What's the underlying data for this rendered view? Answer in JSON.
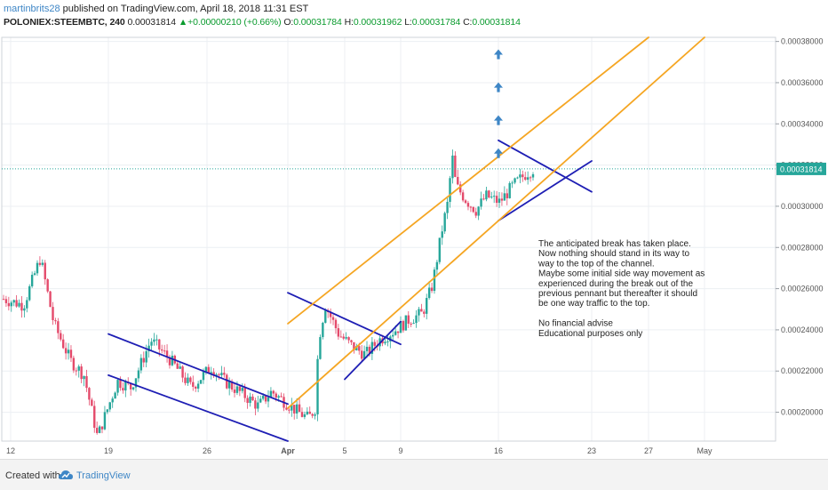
{
  "header": {
    "author": "martinbrits28",
    "published": "published on TradingView.com, April 18, 2018 11:31 EST",
    "symbol": "POLONIEX:STEEMBTC, 240",
    "last": "0.00031814",
    "change_arrow": "▲",
    "change": "+0.00000210 (+0.66%)",
    "o_label": "O:",
    "o_value": "0.00031784",
    "h_label": "H:",
    "h_value": "0.00031962",
    "l_label": "L:",
    "l_value": "0.00031784",
    "c_label": "C:",
    "c_value": "0.00031814"
  },
  "footer": {
    "created_with": "Created with",
    "brand": "TradingView",
    "logo_icon": "tradingview-cloud-icon"
  },
  "colors": {
    "up": "#26a69a",
    "down": "#e44a6b",
    "channel": "#f5a623",
    "trendline": "#1e1eb4",
    "arrow": "#3e86c6",
    "last_price_bg": "#26a69a"
  },
  "chart_data": {
    "type": "candlestick",
    "symbol": "POLONIEX:STEEMBTC",
    "timeframe": "240",
    "x_ticks": [
      "12",
      "19",
      "26",
      "Apr",
      "5",
      "9",
      "16",
      "23",
      "27",
      "May"
    ],
    "y_ticks": [
      "0.00020000",
      "0.00022000",
      "0.00024000",
      "0.00026000",
      "0.00028000",
      "0.00030000",
      "0.00032000",
      "0.00034000",
      "0.00036000",
      "0.00038000"
    ],
    "y_values": [
      0.0002,
      0.00022,
      0.00024,
      0.00026,
      0.00028,
      0.0003,
      0.00032,
      0.00034,
      0.00036,
      0.00038
    ],
    "ylim": [
      0.000186,
      0.000382
    ],
    "last_price_label": "0.00031814",
    "last_price": 0.00031814,
    "grid": true,
    "annotation": {
      "lines": [
        "The anticipated break has taken place.",
        "Now nothing should stand in its way to",
        "way to the top of the channel.",
        "Maybe some initial side way movement as",
        "experienced during the break out of the",
        "previous pennant but thereafter it should",
        "be one way traffic to the top.",
        "",
        "No financial advise",
        "Educational purposes only"
      ]
    },
    "path_points": [
      [
        0.0,
        0.000255
      ],
      [
        0.03,
        0.000252
      ],
      [
        0.055,
        0.000275
      ],
      [
        0.075,
        0.000243
      ],
      [
        0.1,
        0.000225
      ],
      [
        0.12,
        0.000218
      ],
      [
        0.14,
        0.000188
      ],
      [
        0.17,
        0.000215
      ],
      [
        0.19,
        0.000212
      ],
      [
        0.22,
        0.000235
      ],
      [
        0.25,
        0.000225
      ],
      [
        0.28,
        0.000212
      ],
      [
        0.31,
        0.000222
      ],
      [
        0.33,
        0.000215
      ],
      [
        0.36,
        0.000208
      ],
      [
        0.38,
        0.000203
      ],
      [
        0.4,
        0.00021
      ],
      [
        0.42,
        0.000205
      ],
      [
        0.44,
        0.0002
      ],
      [
        0.455,
        0.000197
      ],
      [
        0.465,
        0.000202
      ],
      [
        0.47,
        0.000235
      ],
      [
        0.48,
        0.000252
      ],
      [
        0.5,
        0.000238
      ],
      [
        0.52,
        0.000232
      ],
      [
        0.54,
        0.000228
      ],
      [
        0.56,
        0.000235
      ],
      [
        0.585,
        0.00024
      ],
      [
        0.605,
        0.000245
      ],
      [
        0.625,
        0.000248
      ],
      [
        0.64,
        0.000262
      ],
      [
        0.655,
        0.00029
      ],
      [
        0.665,
        0.000305
      ],
      [
        0.668,
        0.000328
      ],
      [
        0.675,
        0.00031
      ],
      [
        0.69,
        0.000303
      ],
      [
        0.705,
        0.000298
      ],
      [
        0.72,
        0.000305
      ],
      [
        0.74,
        0.000302
      ],
      [
        0.76,
        0.00031
      ],
      [
        0.78,
        0.000316
      ],
      [
        0.79,
        0.000318
      ]
    ],
    "trendlines": [
      {
        "name": "descending-channel-top",
        "p1": [
          "19",
          0.000238
        ],
        "p2": [
          "Apr",
          0.000204
        ],
        "color": "trendline"
      },
      {
        "name": "descending-channel-bottom",
        "p1": [
          "19",
          0.000218
        ],
        "p2": [
          "Apr",
          0.000186
        ],
        "color": "trendline"
      },
      {
        "name": "pennant-1-top",
        "p1": [
          "Apr",
          0.000258
        ],
        "p2": [
          "9",
          0.000233
        ],
        "color": "trendline"
      },
      {
        "name": "pennant-1-bottom",
        "p1": [
          "5",
          0.000216
        ],
        "p2": [
          "9",
          0.000244
        ],
        "color": "trendline"
      },
      {
        "name": "pennant-2-top",
        "p1": [
          "16",
          0.000332
        ],
        "p2": [
          "23",
          0.000307
        ],
        "color": "trendline"
      },
      {
        "name": "pennant-2-bottom",
        "p1": [
          "16",
          0.000293
        ],
        "p2": [
          "23",
          0.000322
        ],
        "color": "trendline"
      },
      {
        "name": "rising-channel-upper",
        "p1": [
          "Apr",
          0.000243
        ],
        "p2": [
          "27",
          0.000382
        ],
        "color": "channel"
      },
      {
        "name": "rising-channel-lower",
        "p1": [
          "Apr",
          0.000202
        ],
        "p2": [
          "May",
          0.000382
        ],
        "color": "channel"
      }
    ],
    "arrows": [
      {
        "x": "16",
        "y": 0.000326
      },
      {
        "x": "16",
        "y": 0.000342
      },
      {
        "x": "16",
        "y": 0.000358
      },
      {
        "x": "16",
        "y": 0.000374
      }
    ]
  }
}
